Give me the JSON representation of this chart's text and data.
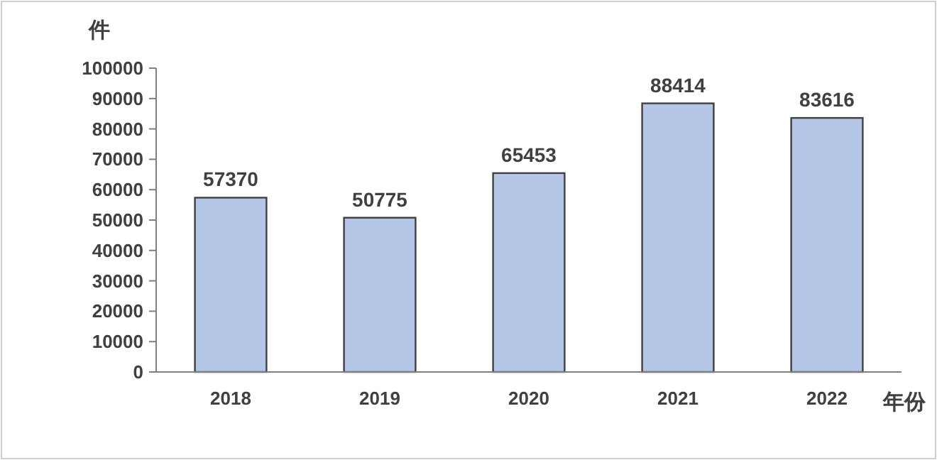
{
  "chart_data": {
    "type": "bar",
    "ylabel": "件",
    "xlabel": "年份",
    "categories": [
      "2018",
      "2019",
      "2020",
      "2021",
      "2022"
    ],
    "values": [
      57370,
      50775,
      65453,
      88414,
      83616
    ],
    "color": "#b4c7e7",
    "ylim": [
      0,
      100000
    ],
    "yticks": [
      0,
      10000,
      20000,
      30000,
      40000,
      50000,
      60000,
      70000,
      80000,
      90000,
      100000
    ],
    "data_labels": true
  }
}
